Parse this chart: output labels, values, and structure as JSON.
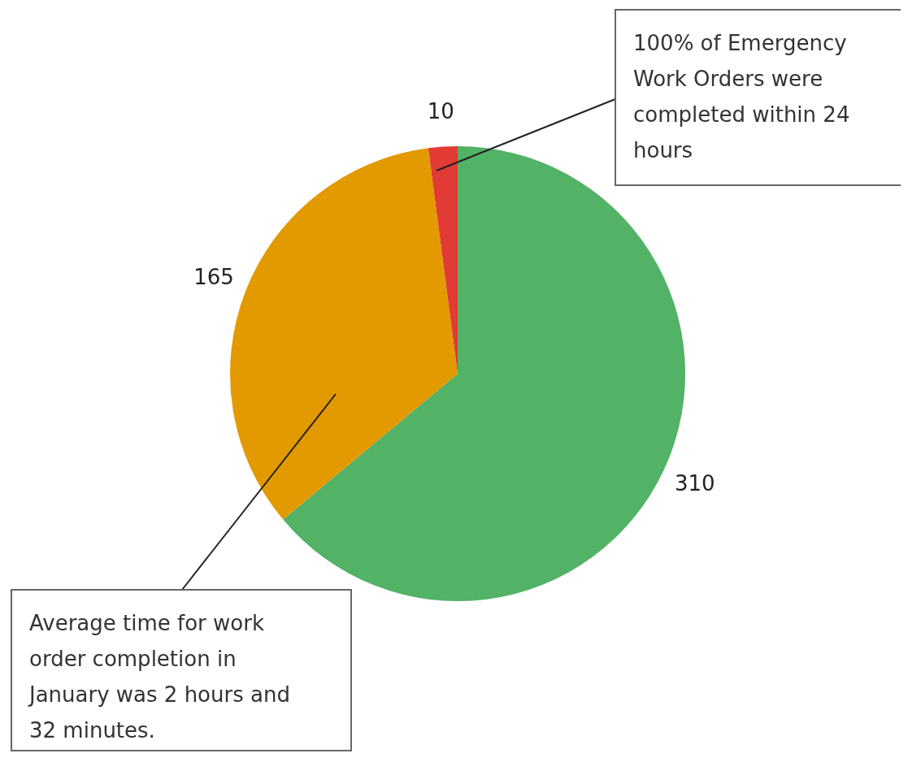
{
  "chart_data": {
    "type": "pie",
    "categories": [
      null,
      null,
      null
    ],
    "values": [
      310,
      165,
      10
    ],
    "colors": [
      "#52b266",
      "#e39a00",
      "#e23a34"
    ],
    "data_labels": true,
    "annotations": [
      "100% of Emergency Work Orders were completed within 24 hours",
      "Average time for work order completion in January was 2 hours and 32 minutes."
    ]
  }
}
